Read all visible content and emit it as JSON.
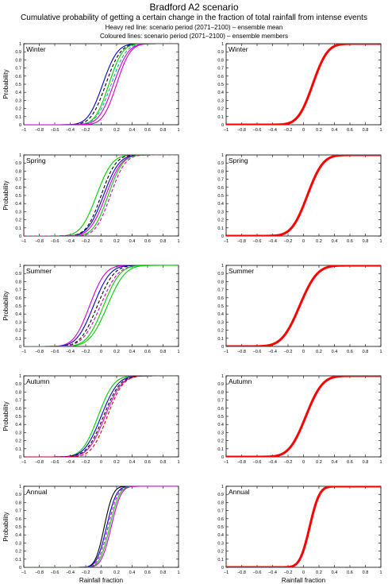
{
  "figure": {
    "title": "Bradford A2 scenario",
    "subtitle": "Cumulative probability of getting a certain change in the fraction of total rainfall from intense events",
    "note_line1": "Heavy red line: scenario period (2071–2100) – ensemble mean",
    "note_line2": "Coloured lines: scenario period (2071–2100) – ensemble members"
  },
  "chart_data": {
    "type": "line",
    "xlabel": "Rainfall fraction",
    "ylabel": "Probability",
    "xlim": [
      -1,
      1
    ],
    "ylim": [
      0,
      1
    ],
    "x_ticks": [
      -1,
      -0.8,
      -0.6,
      -0.4,
      -0.2,
      0,
      0.2,
      0.4,
      0.6,
      0.8,
      1
    ],
    "x_tick_labels": [
      "−1",
      "−0.8",
      "−0.6",
      "−0.4",
      "−0.2",
      "0",
      "0.2",
      "0.4",
      "0.6",
      "0.8",
      "1"
    ],
    "y_ticks": [
      0,
      0.1,
      0.2,
      0.3,
      0.4,
      0.5,
      0.6,
      0.7,
      0.8,
      0.9,
      1
    ],
    "y_tick_labels": [
      "0",
      "0.1",
      "0.2",
      "0.3",
      "0.4",
      "0.5",
      "0.6",
      "0.7",
      "0.8",
      "0.9",
      "1"
    ],
    "mean_color": "#ff0000",
    "member_colors": [
      "#000000",
      "#0000cc",
      "#00cc00",
      "#cc00cc",
      "#00aaaa",
      "#cc0000"
    ],
    "panels": [
      {
        "season": "Winter",
        "column": "members",
        "mean": {
          "mu": 0.12,
          "sigma": 0.15
        },
        "members": [
          {
            "mu": 0.02,
            "sigma": 0.15,
            "color": "#0000cc",
            "dash": false
          },
          {
            "mu": 0.06,
            "sigma": 0.15,
            "color": "#000000",
            "dash": true
          },
          {
            "mu": 0.1,
            "sigma": 0.14,
            "color": "#00cc00",
            "dash": false
          },
          {
            "mu": 0.13,
            "sigma": 0.15,
            "color": "#00aaaa",
            "dash": true
          },
          {
            "mu": 0.16,
            "sigma": 0.15,
            "color": "#cc00cc",
            "dash": false
          },
          {
            "mu": 0.2,
            "sigma": 0.14,
            "color": "#cc00cc",
            "dash": false
          }
        ]
      },
      {
        "season": "Winter",
        "column": "mean",
        "mean": {
          "mu": 0.12,
          "sigma": 0.15
        }
      },
      {
        "season": "Spring",
        "column": "members",
        "mean": {
          "mu": 0.05,
          "sigma": 0.16
        },
        "members": [
          {
            "mu": -0.06,
            "sigma": 0.16,
            "color": "#00cc00",
            "dash": false
          },
          {
            "mu": 0.0,
            "sigma": 0.15,
            "color": "#000000",
            "dash": true
          },
          {
            "mu": 0.03,
            "sigma": 0.16,
            "color": "#0000cc",
            "dash": false
          },
          {
            "mu": 0.06,
            "sigma": 0.16,
            "color": "#cc00cc",
            "dash": false
          },
          {
            "mu": 0.09,
            "sigma": 0.15,
            "color": "#00cc00",
            "dash": false
          },
          {
            "mu": 0.12,
            "sigma": 0.15,
            "color": "#cc00cc",
            "dash": true
          }
        ]
      },
      {
        "season": "Spring",
        "column": "mean",
        "mean": {
          "mu": 0.05,
          "sigma": 0.16
        }
      },
      {
        "season": "Summer",
        "column": "members",
        "mean": {
          "mu": -0.05,
          "sigma": 0.18
        },
        "members": [
          {
            "mu": -0.15,
            "sigma": 0.16,
            "color": "#cc00cc",
            "dash": false
          },
          {
            "mu": -0.1,
            "sigma": 0.17,
            "color": "#0000cc",
            "dash": false
          },
          {
            "mu": -0.05,
            "sigma": 0.17,
            "color": "#000000",
            "dash": true
          },
          {
            "mu": -0.01,
            "sigma": 0.18,
            "color": "#cc00cc",
            "dash": true
          },
          {
            "mu": 0.03,
            "sigma": 0.17,
            "color": "#00cc00",
            "dash": false
          },
          {
            "mu": 0.08,
            "sigma": 0.18,
            "color": "#00cc00",
            "dash": false
          }
        ]
      },
      {
        "season": "Summer",
        "column": "mean",
        "mean": {
          "mu": -0.05,
          "sigma": 0.18
        }
      },
      {
        "season": "Autumn",
        "column": "members",
        "mean": {
          "mu": 0.03,
          "sigma": 0.17
        },
        "members": [
          {
            "mu": -0.04,
            "sigma": 0.16,
            "color": "#00cc00",
            "dash": false
          },
          {
            "mu": 0.0,
            "sigma": 0.17,
            "color": "#0000cc",
            "dash": false
          },
          {
            "mu": 0.03,
            "sigma": 0.17,
            "color": "#000000",
            "dash": true
          },
          {
            "mu": 0.05,
            "sigma": 0.17,
            "color": "#cc00cc",
            "dash": false
          },
          {
            "mu": 0.08,
            "sigma": 0.16,
            "color": "#cc0000",
            "dash": true
          }
        ]
      },
      {
        "season": "Autumn",
        "column": "mean",
        "mean": {
          "mu": 0.03,
          "sigma": 0.17
        }
      },
      {
        "season": "Annual",
        "column": "members",
        "mean": {
          "mu": 0.08,
          "sigma": 0.1
        },
        "members": [
          {
            "mu": 0.04,
            "sigma": 0.09,
            "color": "#000000",
            "dash": false
          },
          {
            "mu": 0.07,
            "sigma": 0.1,
            "color": "#0000cc",
            "dash": false
          },
          {
            "mu": 0.09,
            "sigma": 0.1,
            "color": "#cc00cc",
            "dash": true
          },
          {
            "mu": 0.11,
            "sigma": 0.1,
            "color": "#00cc00",
            "dash": false
          },
          {
            "mu": 0.13,
            "sigma": 0.1,
            "color": "#cc00cc",
            "dash": false
          }
        ]
      },
      {
        "season": "Annual",
        "column": "mean",
        "mean": {
          "mu": 0.08,
          "sigma": 0.1
        }
      }
    ]
  }
}
